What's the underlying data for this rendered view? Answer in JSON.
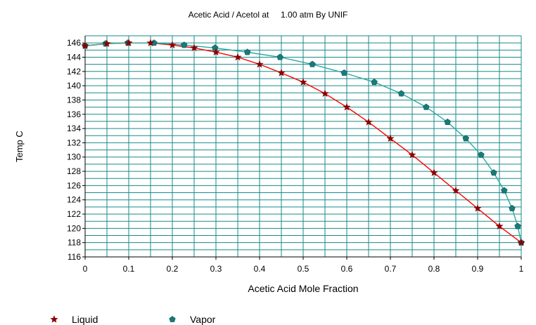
{
  "chart_data": {
    "type": "scatter",
    "title": "Acetic Acid / Acetol at     1.00 atm By UNIF",
    "xlabel": "Acetic Acid Mole Fraction",
    "ylabel": "Temp C",
    "xlim": [
      0,
      1
    ],
    "ylim": [
      116,
      147
    ],
    "grid": true,
    "legend_position": "bottom-left",
    "x_ticks": [
      "0",
      "0.1",
      "0.2",
      "0.3",
      "0.4",
      "0.5",
      "0.6",
      "0.7",
      "0.8",
      "0.9",
      "1"
    ],
    "y_ticks": [
      "116",
      "118",
      "120",
      "122",
      "124",
      "126",
      "128",
      "130",
      "132",
      "134",
      "136",
      "138",
      "140",
      "142",
      "144",
      "146"
    ],
    "series": [
      {
        "name": "Liquid",
        "marker": "star",
        "marker_color": "#8b0000",
        "line_color": "#ff0000",
        "x": [
          0,
          0.05,
          0.1,
          0.15,
          0.2,
          0.25,
          0.3,
          0.35,
          0.4,
          0.45,
          0.5,
          0.55,
          0.6,
          0.65,
          0.7,
          0.75,
          0.8,
          0.85,
          0.9,
          0.95,
          1.0
        ],
        "y": [
          145.6,
          145.9,
          146.0,
          146.0,
          145.7,
          145.3,
          144.7,
          144.0,
          143.0,
          141.8,
          140.5,
          138.9,
          137.0,
          134.9,
          132.6,
          130.3,
          127.8,
          125.3,
          122.8,
          120.3,
          118.0
        ]
      },
      {
        "name": "Vapor",
        "marker": "pentagon",
        "marker_color": "#1a7a7a",
        "line_color": "#2ea8a0",
        "x": [
          0,
          0.047,
          0.098,
          0.158,
          0.227,
          0.298,
          0.372,
          0.447,
          0.521,
          0.594,
          0.663,
          0.725,
          0.782,
          0.831,
          0.873,
          0.908,
          0.937,
          0.961,
          0.979,
          0.992,
          1.0
        ],
        "y": [
          145.6,
          145.9,
          146.0,
          146.0,
          145.7,
          145.3,
          144.7,
          144.0,
          143.0,
          141.8,
          140.5,
          138.9,
          137.0,
          134.9,
          132.6,
          130.3,
          127.8,
          125.3,
          122.8,
          120.3,
          118.0
        ]
      }
    ]
  },
  "legend": {
    "liquid_label": "Liquid",
    "vapor_label": "Vapor"
  }
}
